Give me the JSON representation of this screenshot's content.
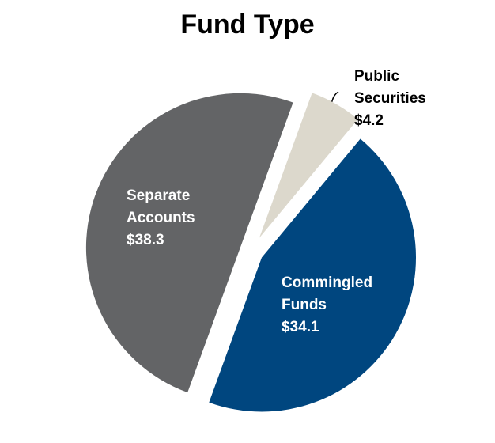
{
  "chart_data": {
    "type": "pie",
    "title": "Fund Type",
    "categories": [
      "Separate Accounts",
      "Commingled Funds",
      "Public Securities"
    ],
    "values": [
      38.3,
      34.1,
      4.2
    ],
    "value_labels": [
      "$38.3",
      "$34.1",
      "$4.2"
    ],
    "colors": [
      "#636466",
      "#00467f",
      "#dcd8cc"
    ]
  }
}
